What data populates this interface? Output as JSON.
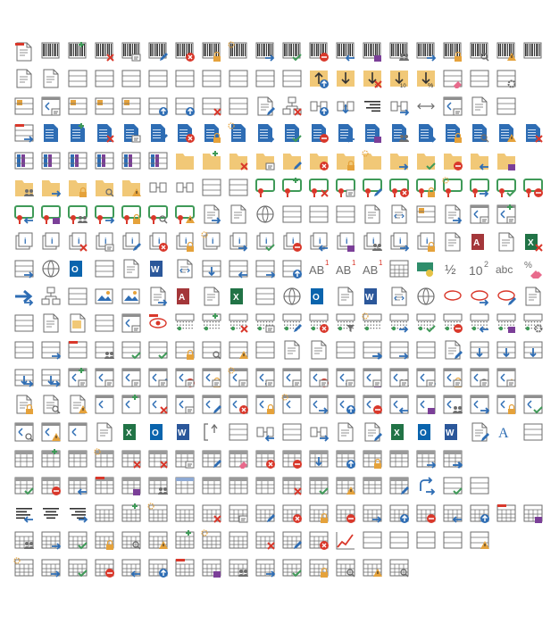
{
  "sheet": {
    "title": "",
    "text_glyphs": {
      "ab": "AB",
      "one": "1",
      "half": "½",
      "ten": "10",
      "two": "2",
      "abc": "abc",
      "pct": "%",
      "chk_ab": "ab",
      "x": "x",
      "ten_small": "10"
    },
    "colors": {
      "gray": "#6d6d6d",
      "blue": "#2e6db4",
      "red": "#d9382b",
      "green": "#3f9a58",
      "orange": "#e5a23b",
      "gold": "#f1c877",
      "purple": "#7b3f98",
      "pink": "#e86a8c"
    },
    "rows": [
      [
        "doc-red",
        "barcode",
        "barcode-add",
        "barcode-delete",
        "barcode-form",
        "barcode-edit",
        "barcode-error",
        "barcode-lock",
        "barcode-new",
        "barcode-arrow",
        "barcode-check",
        "barcode-minus",
        "barcode-left",
        "barcode-purple",
        "barcode-people",
        "barcode-right",
        "barcode-lock2",
        "barcode-search",
        "barcode-warn",
        "barcode-blue"
      ],
      [
        "doc-copy",
        "select-frame",
        "layout-a",
        "layout-b",
        "layout-c",
        "layout-d",
        "layout-e",
        "layout-f",
        "layout-g",
        "layout-h",
        "layout-grid",
        "move-up",
        "move-down",
        "move-down-x",
        "move-10",
        "move-pct",
        "erase-grid",
        "grid-ab",
        "grid-settings",
        ""
      ],
      [
        "grid-orange",
        "grid-orange-form",
        "grid-orange-gt",
        "grid-orange-lt",
        "grid-orange-ne",
        "grid-up",
        "grid-up-pct",
        "grid-delete",
        "grid-tree",
        "doc-edit",
        "tree-delete",
        "merge-up",
        "merge-down",
        "align-cols",
        "merge-right",
        "arrow-h",
        "grid-form",
        "doc-lines",
        "grid-ne",
        ""
      ],
      [
        "grid-red-arrow",
        "doc-blue",
        "doc-blue-add",
        "doc-blue-delete",
        "doc-blue-form",
        "doc-blue-edit",
        "doc-blue-error",
        "doc-blue-lock",
        "doc-blue-new",
        "doc-blue-arrow",
        "doc-blue-check",
        "doc-blue-minus",
        "doc-blue-left",
        "doc-blue-purple",
        "doc-blue-people",
        "doc-blue-right",
        "doc-blue-lock2",
        "doc-blue-search",
        "doc-blue-warn",
        "doc-blue-x"
      ],
      [
        "grid-color",
        "grid-color-b",
        "grid-color-c",
        "grid-color-d",
        "grid-color-e",
        "grid-color-f",
        "folder-gold",
        "folder-add",
        "folder-delete",
        "folder-form",
        "folder-edit",
        "folder-error",
        "folder-lock",
        "folder-new",
        "folder-arrow",
        "folder-check",
        "folder-minus",
        "folder-left",
        "folder-purple",
        ""
      ],
      [
        "folder-people",
        "folder-right",
        "folder-lock2",
        "folder-search",
        "folder-warn",
        "split-v",
        "link-h",
        "grid-cell",
        "tree-box",
        "cert",
        "cert-add",
        "cert-delete",
        "cert-form",
        "cert-edit",
        "cert-error",
        "cert-lock",
        "cert-new",
        "cert-arrow",
        "cert-check",
        "cert-minus"
      ],
      [
        "cert-left",
        "cert-purple",
        "cert-people",
        "cert-right",
        "cert-lock2",
        "cert-search",
        "cert-warn",
        "doc-arrow",
        "doc-a",
        "doc-globe",
        "window-blue",
        "panel-blue",
        "panel-compare",
        "doc-wave",
        "doc-code",
        "grid-orange-blue",
        "copy-arrow",
        "doc-form-stack",
        "doc-form-add",
        ""
      ],
      [
        "info-doc",
        "info-doc-b",
        "info-delete",
        "info-form",
        "info-edit",
        "info-error",
        "info-lock",
        "info-new",
        "info-arrow",
        "info-check",
        "info-minus",
        "info-left",
        "info-purple",
        "info-people",
        "info-right",
        "info-lock2",
        "doc-plain",
        "access-a",
        "doc-a2",
        "excel-x"
      ],
      [
        "window-arrow",
        "globe",
        "outlook",
        "window-link",
        "doc-lines2",
        "word",
        "doc-code2",
        "box-down",
        "box-left",
        "box-right",
        "box-up",
        "ab-1",
        "ab-1b",
        "ab-1c",
        "calculator",
        "money",
        "half",
        "ten-sq",
        "abc-text",
        "pct-erase"
      ],
      [
        "arrow-blue",
        "tree-sheet",
        "list-sheet",
        "image-doc",
        "image-frame",
        "doc-arrow2",
        "access-b",
        "doc-a3",
        "excel-b",
        "input-box",
        "globe2",
        "outlook2",
        "doc-stack",
        "word2",
        "doc-code3",
        "globe3",
        "ellipse-doc",
        "ellipse-arrow",
        "ellipse-pen",
        "doc-lines3"
      ],
      [
        "list-copy",
        "doc-lines4",
        "doc-yellow",
        "grid-small",
        "form-print",
        "eye-red",
        "grid-dots",
        "grid-dots-add",
        "grid-dots-delete",
        "grid-dots-form",
        "grid-dots-edit",
        "grid-dots-error",
        "grid-dots-filter",
        "grid-dots-new",
        "grid-dots-arrow",
        "grid-dots-check",
        "grid-dots-minus",
        "grid-dots-left",
        "grid-dots-purple",
        "grid-dots-settings"
      ],
      [
        "grid-refresh",
        "grid-right-plain",
        "grid-red-bar",
        "grid-people",
        "grid-check",
        "grid-check2",
        "grid-lock",
        "grid-search",
        "grid-warn",
        "grid-plain",
        "doc-question",
        "doc-copy2",
        "box-plain",
        "box-arrow-right",
        "box-arrow-both",
        "box-window",
        "lines-edit",
        "box-down2",
        "box-down3",
        "box-down4"
      ],
      [
        "box-arrow-down",
        "box-arrow-down2",
        "form-add",
        "form-delete",
        "form-form",
        "form-edit",
        "form-error",
        "form-lock",
        "form-new",
        "form-arrow",
        "form-check",
        "form-minus",
        "form-left",
        "form-purple",
        "form-people",
        "form-right",
        "form-lock2",
        "form-search",
        "form-warn",
        ""
      ],
      [
        "doc-lock",
        "doc-search",
        "doc-warn",
        "fs-swap",
        "fs-swap-add",
        "fs-swap-delete",
        "fs-swap-form",
        "fs-swap-edit",
        "fs-swap-error",
        "fs-swap-lock",
        "fs-swap-new",
        "fs-swap-arrow",
        "fs-swap-up",
        "fs-swap-minus",
        "fs-swap-left",
        "fs-swap-purple",
        "fs-swap-people",
        "fs-swap-right",
        "fs-swap-lock2",
        "fs-swap-check"
      ],
      [
        "fs-swap-search",
        "fs-swap-warn",
        "fs-swap-orange",
        "print-doc",
        "excel-swap",
        "outlook-swap",
        "word-swap",
        "bracket",
        "link-box",
        "link-left",
        "link-grid",
        "link-right",
        "doc-col",
        "clip-edit",
        "excel-c",
        "outlook3",
        "word3",
        "doc-edit2",
        "text-a",
        "tree-list"
      ],
      [
        "table",
        "table-add",
        "table-dots",
        "table-new",
        "table-delete",
        "table-x",
        "table-form",
        "table-edit",
        "table-erase",
        "table-error",
        "table-minus",
        "table-down",
        "table-up",
        "table-lock",
        "table-alt",
        "table-right",
        "table-arrow-right",
        "",
        "",
        ""
      ],
      [
        "table-check",
        "table-minus2",
        "table-left",
        "table-red",
        "table-purple",
        "table-people",
        "table-blue",
        "table-gray",
        "table-plain",
        "table-lines",
        "table-delete2",
        "table-check2",
        "table-warn",
        "table-stripe",
        "table-edit2",
        "arrow-loop",
        "list-check",
        "list-tree",
        "",
        ""
      ],
      [
        "align-left",
        "align-center",
        "align-right",
        "cal",
        "cal-add",
        "cal-new",
        "cal-calc",
        "cal-delete",
        "cal-form",
        "cal-edit",
        "cal-error",
        "cal-lock",
        "cal-minus",
        "cal-arrow",
        "cal-up",
        "cal-minus2",
        "cal-left",
        "cal-up2",
        "cal-red",
        "cal-purple"
      ],
      [
        "cal-people",
        "cal-right",
        "cal-check",
        "cal-lock2",
        "cal-search",
        "cal-warn",
        "cal-add2",
        "cal-new2",
        "cal-calc2",
        "cal-delete2",
        "cal-edit2",
        "cal-error2",
        "chart-line",
        "grid-bar",
        "grid-blue",
        "grid-blue2",
        "grid-blue3",
        "grid-warn2",
        "",
        "",
        ""
      ],
      [
        "cal-new3",
        "cal-arrow2",
        "cal-check2",
        "cal-minus3",
        "cal-left2",
        "cal-up3",
        "cal-red2",
        "cal-purple2",
        "cal-people2",
        "cal-right2",
        "cal-check3",
        "cal-lock3",
        "cal-search2",
        "cal-warn3",
        "cal-search3",
        "",
        "",
        "",
        "",
        ""
      ]
    ]
  }
}
